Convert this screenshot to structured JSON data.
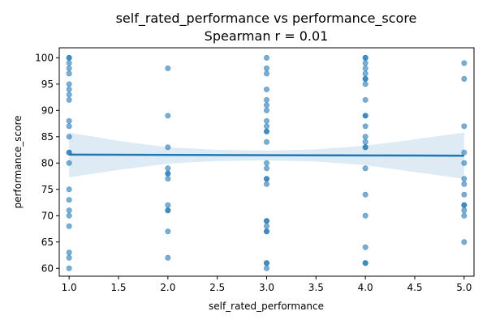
{
  "chart_data": {
    "type": "scatter",
    "title": "self_rated_performance vs performance_score",
    "subtitle": "Spearman r = 0.01",
    "xlabel": "self_rated_performance",
    "ylabel": "performance_score",
    "xlim": [
      0.9,
      5.1
    ],
    "ylim": [
      58.5,
      101.9
    ],
    "xticks": [
      "1.0",
      "1.5",
      "2.0",
      "2.5",
      "3.0",
      "3.5",
      "4.0",
      "4.5",
      "5.0"
    ],
    "yticks": [
      "60",
      "65",
      "70",
      "75",
      "80",
      "85",
      "90",
      "95",
      "100"
    ],
    "colors": {
      "points": "#1f77b4",
      "line": "#1f77b4",
      "band": "#1f77b4"
    },
    "grid": false,
    "points": [
      {
        "x": 1,
        "y": 100
      },
      {
        "x": 1,
        "y": 100
      },
      {
        "x": 1,
        "y": 99
      },
      {
        "x": 1,
        "y": 98
      },
      {
        "x": 1,
        "y": 97
      },
      {
        "x": 1,
        "y": 95
      },
      {
        "x": 1,
        "y": 94
      },
      {
        "x": 1,
        "y": 93
      },
      {
        "x": 1,
        "y": 92
      },
      {
        "x": 1,
        "y": 88
      },
      {
        "x": 1,
        "y": 87
      },
      {
        "x": 1,
        "y": 85
      },
      {
        "x": 1,
        "y": 82
      },
      {
        "x": 1,
        "y": 82
      },
      {
        "x": 1,
        "y": 80
      },
      {
        "x": 1,
        "y": 75
      },
      {
        "x": 1,
        "y": 73
      },
      {
        "x": 1,
        "y": 71
      },
      {
        "x": 1,
        "y": 70
      },
      {
        "x": 1,
        "y": 68
      },
      {
        "x": 1,
        "y": 63
      },
      {
        "x": 1,
        "y": 62
      },
      {
        "x": 1,
        "y": 60
      },
      {
        "x": 2,
        "y": 98
      },
      {
        "x": 2,
        "y": 89
      },
      {
        "x": 2,
        "y": 83
      },
      {
        "x": 2,
        "y": 79
      },
      {
        "x": 2,
        "y": 78
      },
      {
        "x": 2,
        "y": 78
      },
      {
        "x": 2,
        "y": 77
      },
      {
        "x": 2,
        "y": 72
      },
      {
        "x": 2,
        "y": 71
      },
      {
        "x": 2,
        "y": 71
      },
      {
        "x": 2,
        "y": 67
      },
      {
        "x": 2,
        "y": 62
      },
      {
        "x": 3,
        "y": 100
      },
      {
        "x": 3,
        "y": 98
      },
      {
        "x": 3,
        "y": 97
      },
      {
        "x": 3,
        "y": 94
      },
      {
        "x": 3,
        "y": 92
      },
      {
        "x": 3,
        "y": 91
      },
      {
        "x": 3,
        "y": 90
      },
      {
        "x": 3,
        "y": 88
      },
      {
        "x": 3,
        "y": 87
      },
      {
        "x": 3,
        "y": 86
      },
      {
        "x": 3,
        "y": 86
      },
      {
        "x": 3,
        "y": 84
      },
      {
        "x": 3,
        "y": 80
      },
      {
        "x": 3,
        "y": 79
      },
      {
        "x": 3,
        "y": 77
      },
      {
        "x": 3,
        "y": 77
      },
      {
        "x": 3,
        "y": 76
      },
      {
        "x": 3,
        "y": 69
      },
      {
        "x": 3,
        "y": 69
      },
      {
        "x": 3,
        "y": 68
      },
      {
        "x": 3,
        "y": 67
      },
      {
        "x": 3,
        "y": 67
      },
      {
        "x": 3,
        "y": 61
      },
      {
        "x": 3,
        "y": 61
      },
      {
        "x": 3,
        "y": 60
      },
      {
        "x": 4,
        "y": 100
      },
      {
        "x": 4,
        "y": 100
      },
      {
        "x": 4,
        "y": 99
      },
      {
        "x": 4,
        "y": 98
      },
      {
        "x": 4,
        "y": 97
      },
      {
        "x": 4,
        "y": 96
      },
      {
        "x": 4,
        "y": 96
      },
      {
        "x": 4,
        "y": 95
      },
      {
        "x": 4,
        "y": 92
      },
      {
        "x": 4,
        "y": 89
      },
      {
        "x": 4,
        "y": 89
      },
      {
        "x": 4,
        "y": 87
      },
      {
        "x": 4,
        "y": 85
      },
      {
        "x": 4,
        "y": 84
      },
      {
        "x": 4,
        "y": 83
      },
      {
        "x": 4,
        "y": 83
      },
      {
        "x": 4,
        "y": 79
      },
      {
        "x": 4,
        "y": 74
      },
      {
        "x": 4,
        "y": 70
      },
      {
        "x": 4,
        "y": 64
      },
      {
        "x": 4,
        "y": 61
      },
      {
        "x": 4,
        "y": 61
      },
      {
        "x": 5,
        "y": 99
      },
      {
        "x": 5,
        "y": 96
      },
      {
        "x": 5,
        "y": 87
      },
      {
        "x": 5,
        "y": 82
      },
      {
        "x": 5,
        "y": 80
      },
      {
        "x": 5,
        "y": 77
      },
      {
        "x": 5,
        "y": 76
      },
      {
        "x": 5,
        "y": 74
      },
      {
        "x": 5,
        "y": 72
      },
      {
        "x": 5,
        "y": 72
      },
      {
        "x": 5,
        "y": 71
      },
      {
        "x": 5,
        "y": 70
      },
      {
        "x": 5,
        "y": 65
      }
    ],
    "regression_line": {
      "x": [
        1,
        5
      ],
      "y": [
        81.6,
        81.4
      ]
    },
    "confidence_band": {
      "x": [
        1,
        1.5,
        2,
        2.5,
        3,
        3.5,
        4,
        4.5,
        5
      ],
      "upper": [
        85.8,
        84.2,
        83.0,
        82.5,
        82.4,
        82.6,
        83.3,
        84.5,
        85.8
      ],
      "lower": [
        77.3,
        78.7,
        79.9,
        80.4,
        80.5,
        80.3,
        79.6,
        78.3,
        77.0
      ]
    }
  }
}
